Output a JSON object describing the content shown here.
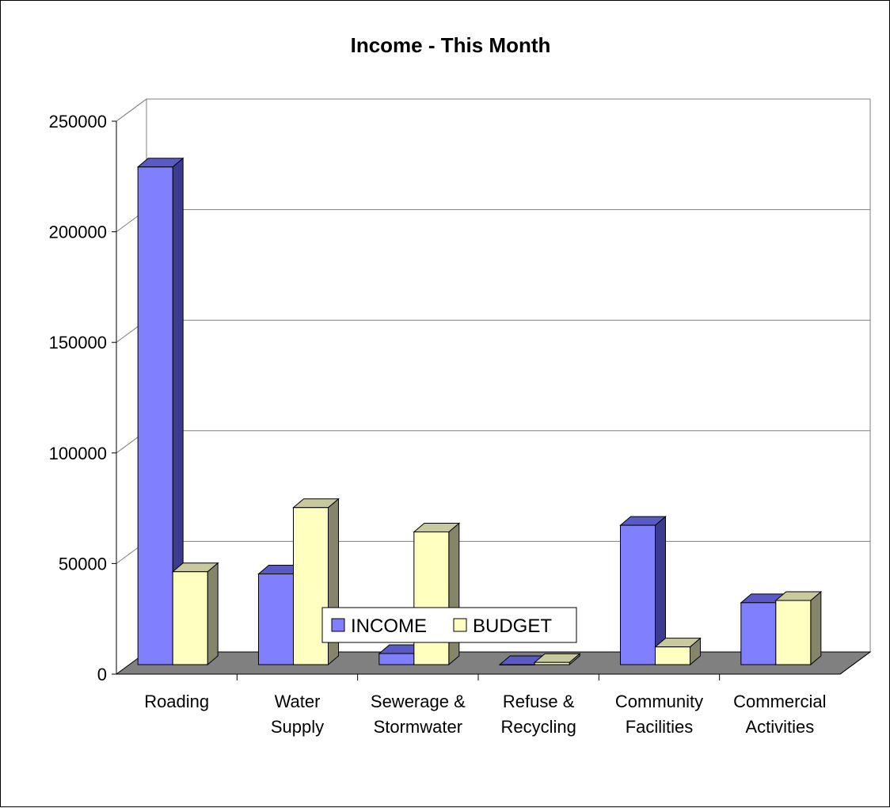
{
  "chart_data": {
    "type": "bar",
    "title": "Income - This Month",
    "categories": [
      [
        "Roading"
      ],
      [
        "Water",
        "Supply"
      ],
      [
        "Sewerage &",
        "Stormwater"
      ],
      [
        "Refuse &",
        "Recycling"
      ],
      [
        "Community",
        "Facilities"
      ],
      [
        "Commercial",
        "Activities"
      ]
    ],
    "series": [
      {
        "name": "INCOME",
        "values": [
          225000,
          41000,
          5000,
          0,
          63000,
          28000
        ],
        "color": "#8080ff",
        "side": "#3b3b8f",
        "top": "#5a5ac4"
      },
      {
        "name": "BUDGET",
        "values": [
          42000,
          71000,
          60000,
          1000,
          8000,
          29000
        ],
        "color": "#ffffc0",
        "side": "#85856b",
        "top": "#c9c9a0"
      }
    ],
    "ylim": [
      0,
      250000
    ],
    "yticks": [
      "0",
      "50000",
      "100000",
      "150000",
      "200000",
      "250000"
    ],
    "grid": true,
    "legend_position": "bottom-center",
    "colors": {
      "floor": "#808080",
      "gridline": "#808080"
    }
  }
}
